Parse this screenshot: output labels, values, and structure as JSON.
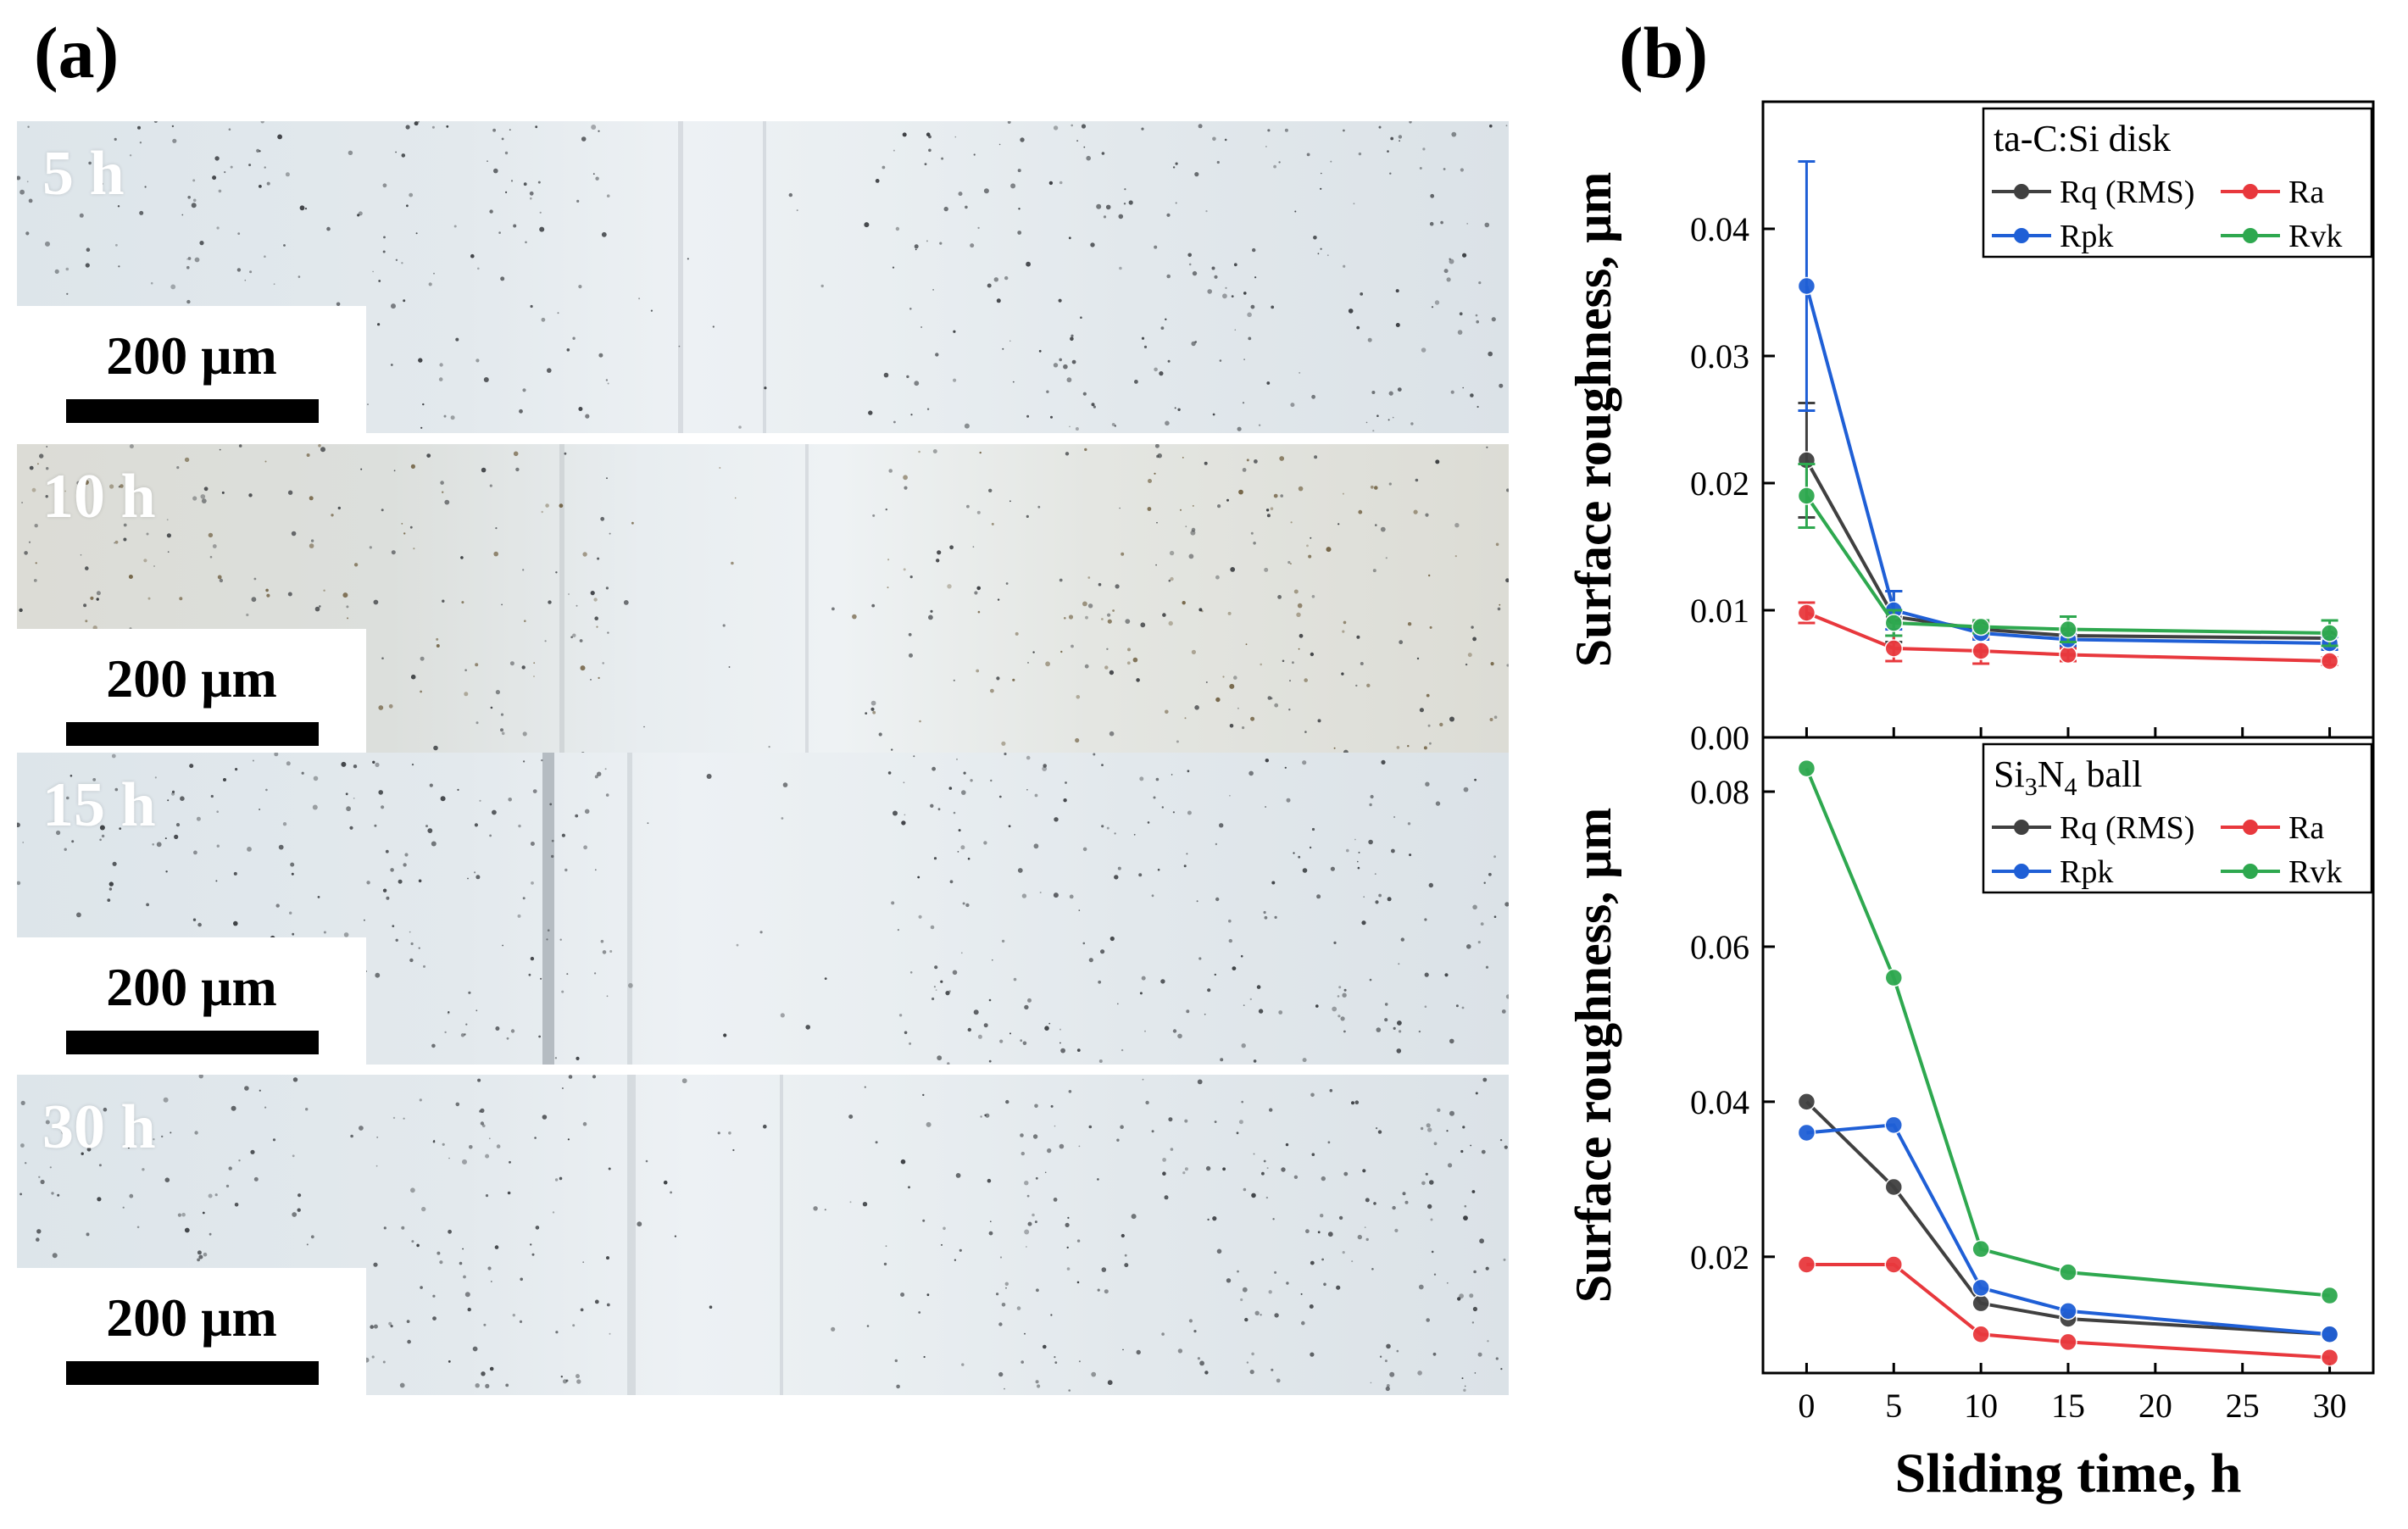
{
  "panel_a": {
    "label": "(a)",
    "images": [
      {
        "time": "5 h",
        "scale": "200 μm"
      },
      {
        "time": "10 h",
        "scale": "200 μm"
      },
      {
        "time": "15 h",
        "scale": "200 μm"
      },
      {
        "time": "30 h",
        "scale": "200 μm"
      }
    ]
  },
  "panel_b": {
    "label": "(b)"
  },
  "colors": {
    "Rq (RMS)": "#404040",
    "Ra": "#e8383d",
    "Rpk": "#1f5fd6",
    "Rvk": "#2ea84f"
  },
  "chart_data": [
    {
      "type": "line",
      "title": "ta-C:Si disk",
      "xlabel": "Sliding time, h",
      "ylabel": "Surface roughness, μm",
      "x": [
        0,
        5,
        10,
        15,
        30
      ],
      "xlim": [
        -2.5,
        32.5
      ],
      "xticks": [
        "0",
        "5",
        "10",
        "15",
        "20",
        "25",
        "30"
      ],
      "ylim": [
        0,
        0.05
      ],
      "yticks": [
        "0.00",
        "0.01",
        "0.02",
        "0.03",
        "0.04"
      ],
      "legend": "top-right",
      "series": [
        {
          "name": "Rq (RMS)",
          "values": [
            0.0218,
            0.0095,
            0.0085,
            0.008,
            0.0078
          ],
          "errors": [
            0.0045,
            0.002,
            0.0005,
            0.0005,
            0.0005
          ]
        },
        {
          "name": "Ra",
          "values": [
            0.0098,
            0.007,
            0.0068,
            0.0065,
            0.006
          ],
          "errors": [
            0.0008,
            0.001,
            0.001,
            0.0005,
            0.0003
          ]
        },
        {
          "name": "Rpk",
          "values": [
            0.0355,
            0.01,
            0.0082,
            0.0077,
            0.0074
          ],
          "errors": [
            0.0098,
            0.0015,
            0.0005,
            0.0005,
            0.0005
          ]
        },
        {
          "name": "Rvk",
          "values": [
            0.019,
            0.009,
            0.0087,
            0.0085,
            0.0082
          ],
          "errors": [
            0.0025,
            0.001,
            0.0005,
            0.001,
            0.001
          ]
        }
      ]
    },
    {
      "type": "line",
      "title": "Si3N4 ball",
      "xlabel": "Sliding time, h",
      "ylabel": "Surface roughness, μm",
      "x": [
        0,
        5,
        10,
        15,
        30
      ],
      "xlim": [
        -2.5,
        32.5
      ],
      "xticks": [
        "0",
        "5",
        "10",
        "15",
        "20",
        "25",
        "30"
      ],
      "ylim": [
        0.005,
        0.087
      ],
      "yticks": [
        "0.02",
        "0.04",
        "0.06",
        "0.08"
      ],
      "legend": "top-right",
      "series": [
        {
          "name": "Rq (RMS)",
          "values": [
            0.04,
            0.029,
            0.014,
            0.012,
            0.01
          ]
        },
        {
          "name": "Ra",
          "values": [
            0.019,
            0.019,
            0.01,
            0.009,
            0.007
          ]
        },
        {
          "name": "Rpk",
          "values": [
            0.036,
            0.037,
            0.016,
            0.013,
            0.01
          ]
        },
        {
          "name": "Rvk",
          "values": [
            0.083,
            0.056,
            0.021,
            0.018,
            0.015
          ]
        }
      ]
    }
  ]
}
